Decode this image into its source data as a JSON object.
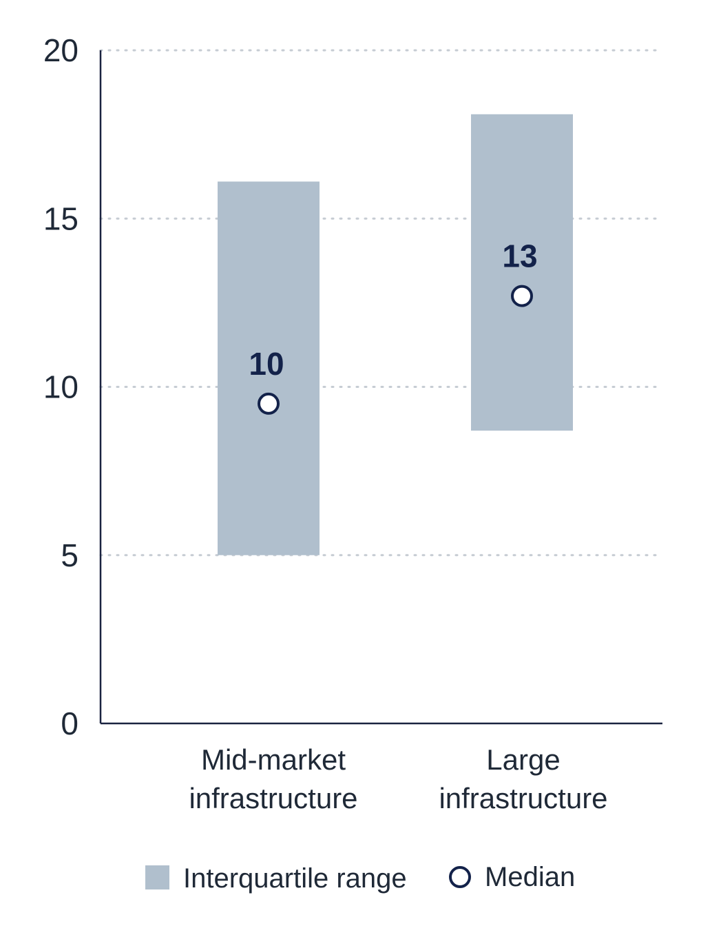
{
  "chart_data": {
    "type": "bar",
    "variant": "range",
    "categories": [
      "Mid-market infrastructure",
      "Large infrastructure"
    ],
    "category_lines": [
      [
        "Mid-market",
        "infrastructure"
      ],
      [
        "Large",
        "infrastructure"
      ]
    ],
    "series": [
      {
        "name": "Interquartile range",
        "low": [
          5,
          8.7
        ],
        "high": [
          16.1,
          18.1
        ]
      },
      {
        "name": "Median",
        "values": [
          9.5,
          12.7
        ],
        "labels": [
          "10",
          "13"
        ]
      }
    ],
    "y_ticks": [
      0,
      5,
      10,
      15,
      20
    ],
    "ylim": [
      0,
      20
    ],
    "grid": true,
    "legend_position": "bottom-center",
    "colors": {
      "iqr_fill": "#b0bfcd",
      "median_stroke": "#13224a",
      "axis": "#1a2340",
      "grid": "#c6ccd3"
    }
  }
}
